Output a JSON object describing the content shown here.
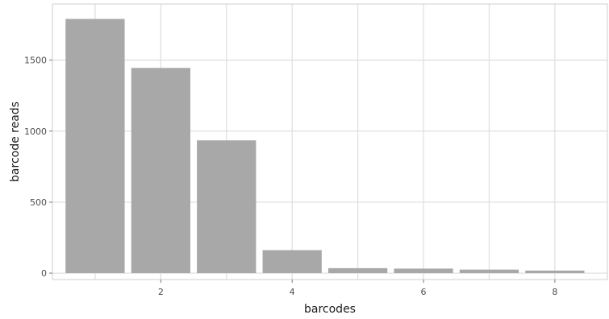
{
  "chart_data": {
    "type": "bar",
    "x": [
      1,
      2,
      3,
      4,
      5,
      6,
      7,
      8
    ],
    "values": [
      1790,
      1445,
      935,
      162,
      35,
      32,
      25,
      18
    ],
    "xlabel": "barcodes",
    "ylabel": "barcode reads",
    "xticks": [
      2,
      4,
      6,
      8
    ],
    "yticks": [
      0,
      500,
      1000,
      1500
    ],
    "xlim": [
      0.35,
      8.8
    ],
    "ylim": [
      -45,
      1895
    ],
    "grid": true,
    "colors": {
      "bar": "#a8a8a8",
      "grid": "#dedede"
    }
  }
}
